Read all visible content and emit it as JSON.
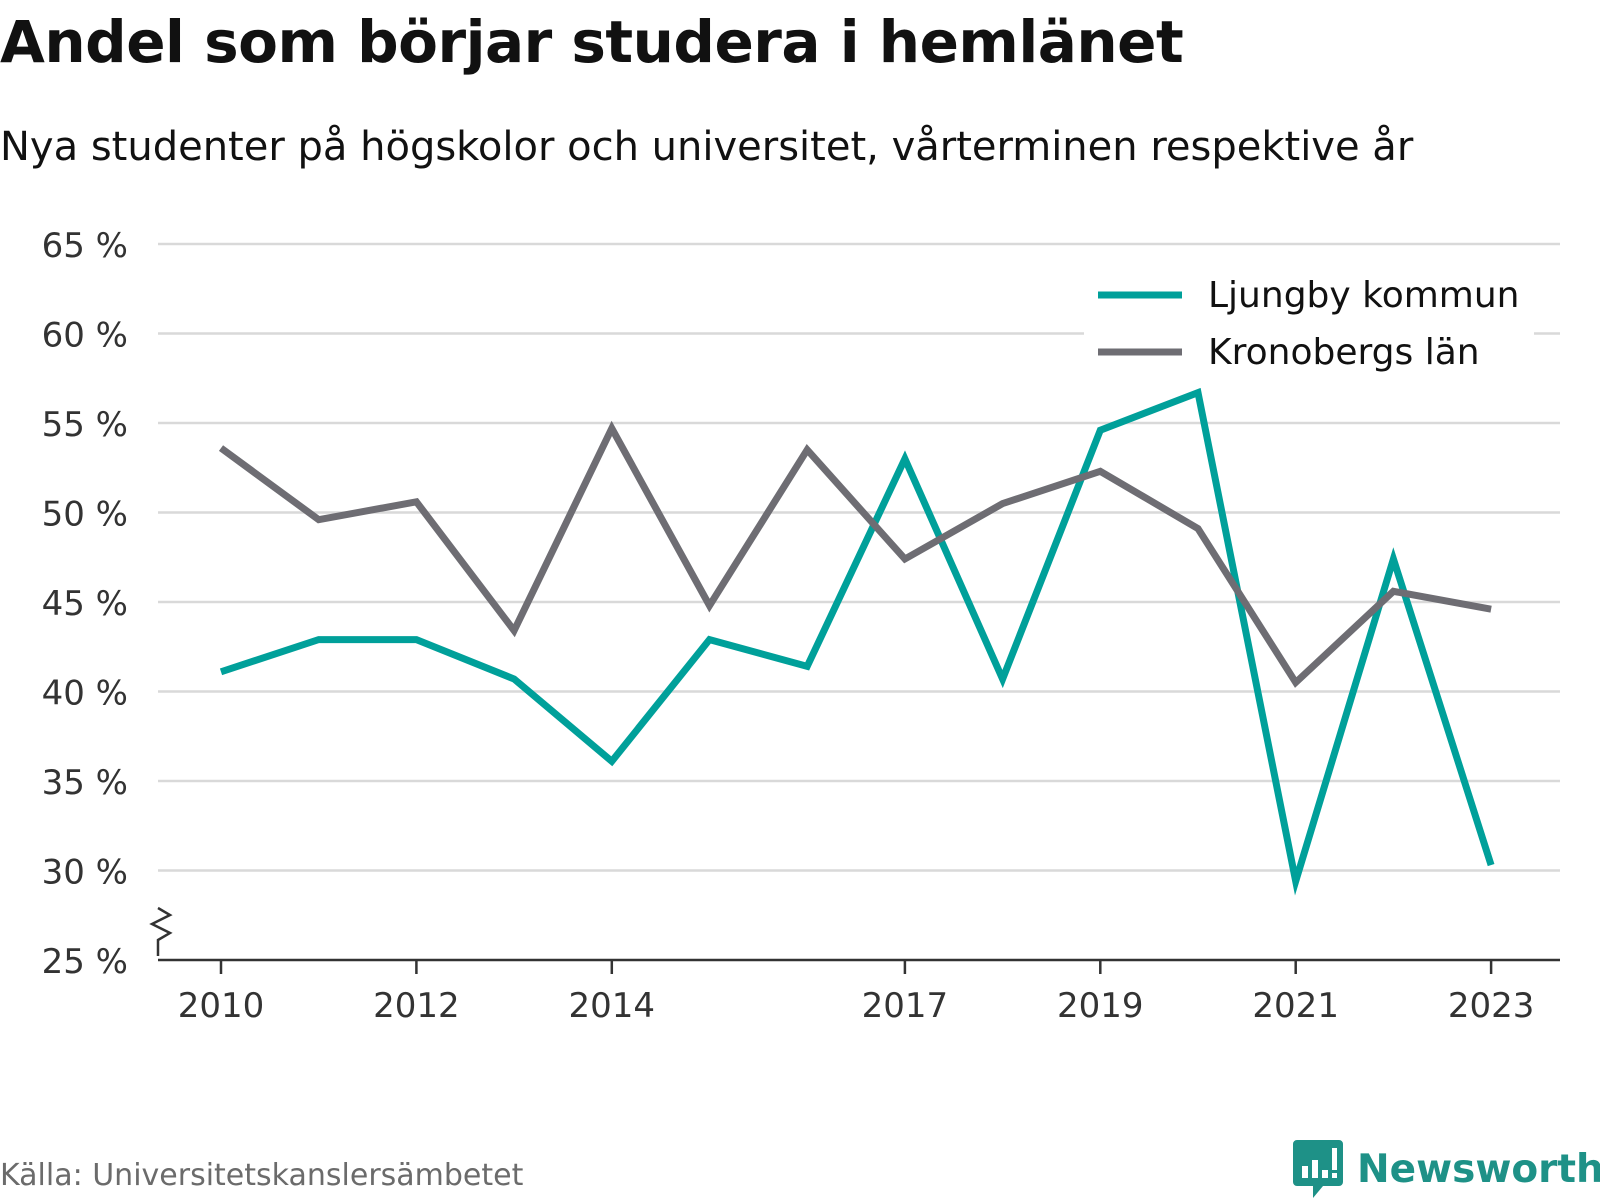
{
  "header": {
    "title": "Andel som börjar studera i hemlänet",
    "subtitle": "Nya studenter på högskolor och universitet, vårterminen respektive år"
  },
  "footer": {
    "source": "Källa: Universitetskanslersämbetet",
    "brand": "Newsworthy",
    "brand_icon": "bar-chart-speech-bubble-icon"
  },
  "colors": {
    "ljungby": "#00a09a",
    "kronoberg": "#6e6d73",
    "grid": "#d9d9d9",
    "axis": "#333333",
    "brand": "#1e9187"
  },
  "chart_data": {
    "type": "line",
    "x": [
      2010,
      2011,
      2012,
      2013,
      2014,
      2015,
      2016,
      2017,
      2018,
      2019,
      2020,
      2021,
      2022,
      2023
    ],
    "x_tick_labels": [
      "2010",
      "2012",
      "2014",
      "2017",
      "2019",
      "2021",
      "2023"
    ],
    "y_ticks": [
      25,
      30,
      35,
      40,
      45,
      50,
      55,
      60,
      65
    ],
    "y_tick_labels": [
      "25 %",
      "30 %",
      "35 %",
      "40 %",
      "45 %",
      "50 %",
      "55 %",
      "60 %",
      "65 %"
    ],
    "ylim": [
      25,
      65
    ],
    "y_axis_break": true,
    "grid": true,
    "legend_position": "top-right",
    "series": [
      {
        "name": "Ljungby kommun",
        "color": "#00a09a",
        "values": [
          41.1,
          42.9,
          42.9,
          40.7,
          36.1,
          42.9,
          41.4,
          53.0,
          40.7,
          54.6,
          56.7,
          29.4,
          47.4,
          30.3
        ]
      },
      {
        "name": "Kronobergs län",
        "color": "#6e6d73",
        "values": [
          53.6,
          49.6,
          50.6,
          43.4,
          54.7,
          44.8,
          53.5,
          47.4,
          50.5,
          52.3,
          49.1,
          40.5,
          45.6,
          44.6
        ]
      }
    ]
  }
}
